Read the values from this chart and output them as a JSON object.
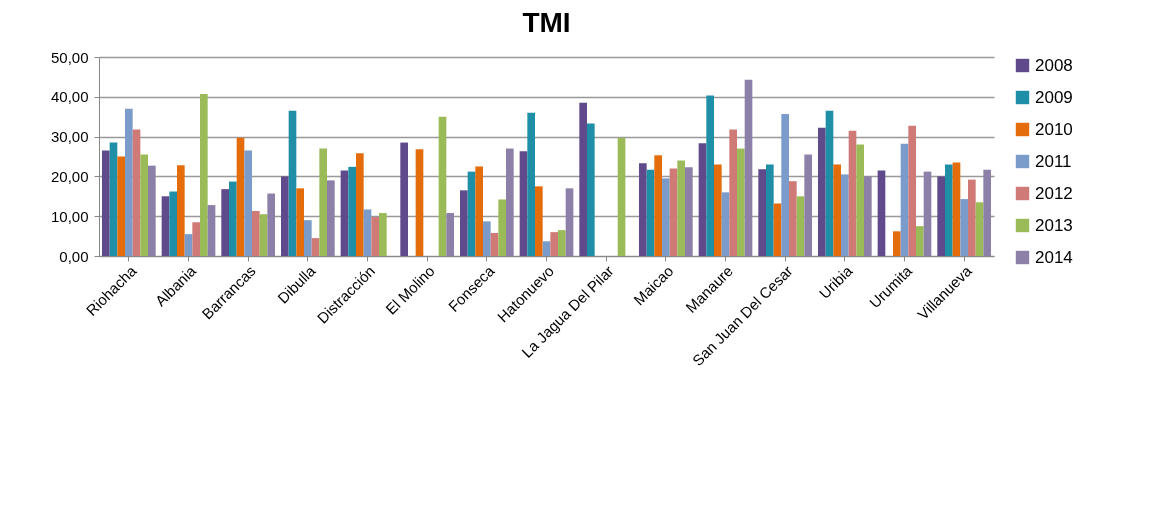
{
  "chart_data": {
    "type": "bar",
    "title": "TMI",
    "categories": [
      "Riohacha",
      "Albania",
      "Barrancas",
      "Dibulla",
      "Distracción",
      "El Molino",
      "Fonseca",
      "Hatonuevo",
      "La Jagua Del Pilar",
      "Maicao",
      "Manaure",
      "San Juan Del Cesar",
      "Uribia",
      "Urumita",
      "Villanueva"
    ],
    "series": [
      {
        "name": "2008",
        "color": "#5f4a8b",
        "values": [
          26.5,
          15,
          16.8,
          20,
          21.5,
          28.5,
          16.5,
          26.3,
          38.5,
          23.3,
          28.3,
          21.8,
          32.2,
          21.5,
          20
        ]
      },
      {
        "name": "2009",
        "color": "#1f8fa8",
        "values": [
          28.5,
          16.2,
          18.7,
          36.5,
          22.4,
          null,
          21.2,
          36,
          33.3,
          21.7,
          40.3,
          23,
          36.5,
          null,
          23
        ]
      },
      {
        "name": "2010",
        "color": "#e46c0a",
        "values": [
          25,
          22.8,
          29.7,
          17,
          25.8,
          26.8,
          22.5,
          17.5,
          null,
          25.3,
          23,
          13.2,
          23,
          6.2,
          23.5
        ]
      },
      {
        "name": "2011",
        "color": "#7b9ccb",
        "values": [
          37,
          5.5,
          26.5,
          9,
          11.7,
          null,
          8.7,
          3.7,
          null,
          19.5,
          16,
          35.7,
          20.5,
          28.2,
          14.3
        ]
      },
      {
        "name": "2012",
        "color": "#d07a78",
        "values": [
          31.8,
          8.5,
          11.3,
          4.5,
          9.8,
          null,
          5.8,
          6,
          null,
          22,
          31.8,
          18.8,
          31.5,
          32.7,
          19.2
        ]
      },
      {
        "name": "2013",
        "color": "#9bbb59",
        "values": [
          25.5,
          40.7,
          10.5,
          27,
          10.8,
          35,
          14.2,
          6.5,
          29.7,
          24,
          27,
          15,
          28,
          7.5,
          13.5
        ]
      },
      {
        "name": "2014",
        "color": "#8d80a8",
        "values": [
          22.7,
          12.8,
          15.7,
          19,
          null,
          10.8,
          27,
          17,
          null,
          22.3,
          44.3,
          25.5,
          20,
          21.2,
          21.7
        ]
      }
    ],
    "ylim": [
      0,
      50
    ],
    "yticks": [
      {
        "value": 0,
        "label": "0,00"
      },
      {
        "value": 10,
        "label": "10,00"
      },
      {
        "value": 20,
        "label": "20,00"
      },
      {
        "value": 30,
        "label": "30,00"
      },
      {
        "value": 40,
        "label": "40,00"
      },
      {
        "value": 50,
        "label": "50,00"
      }
    ],
    "grid": "y",
    "legend": "right"
  }
}
